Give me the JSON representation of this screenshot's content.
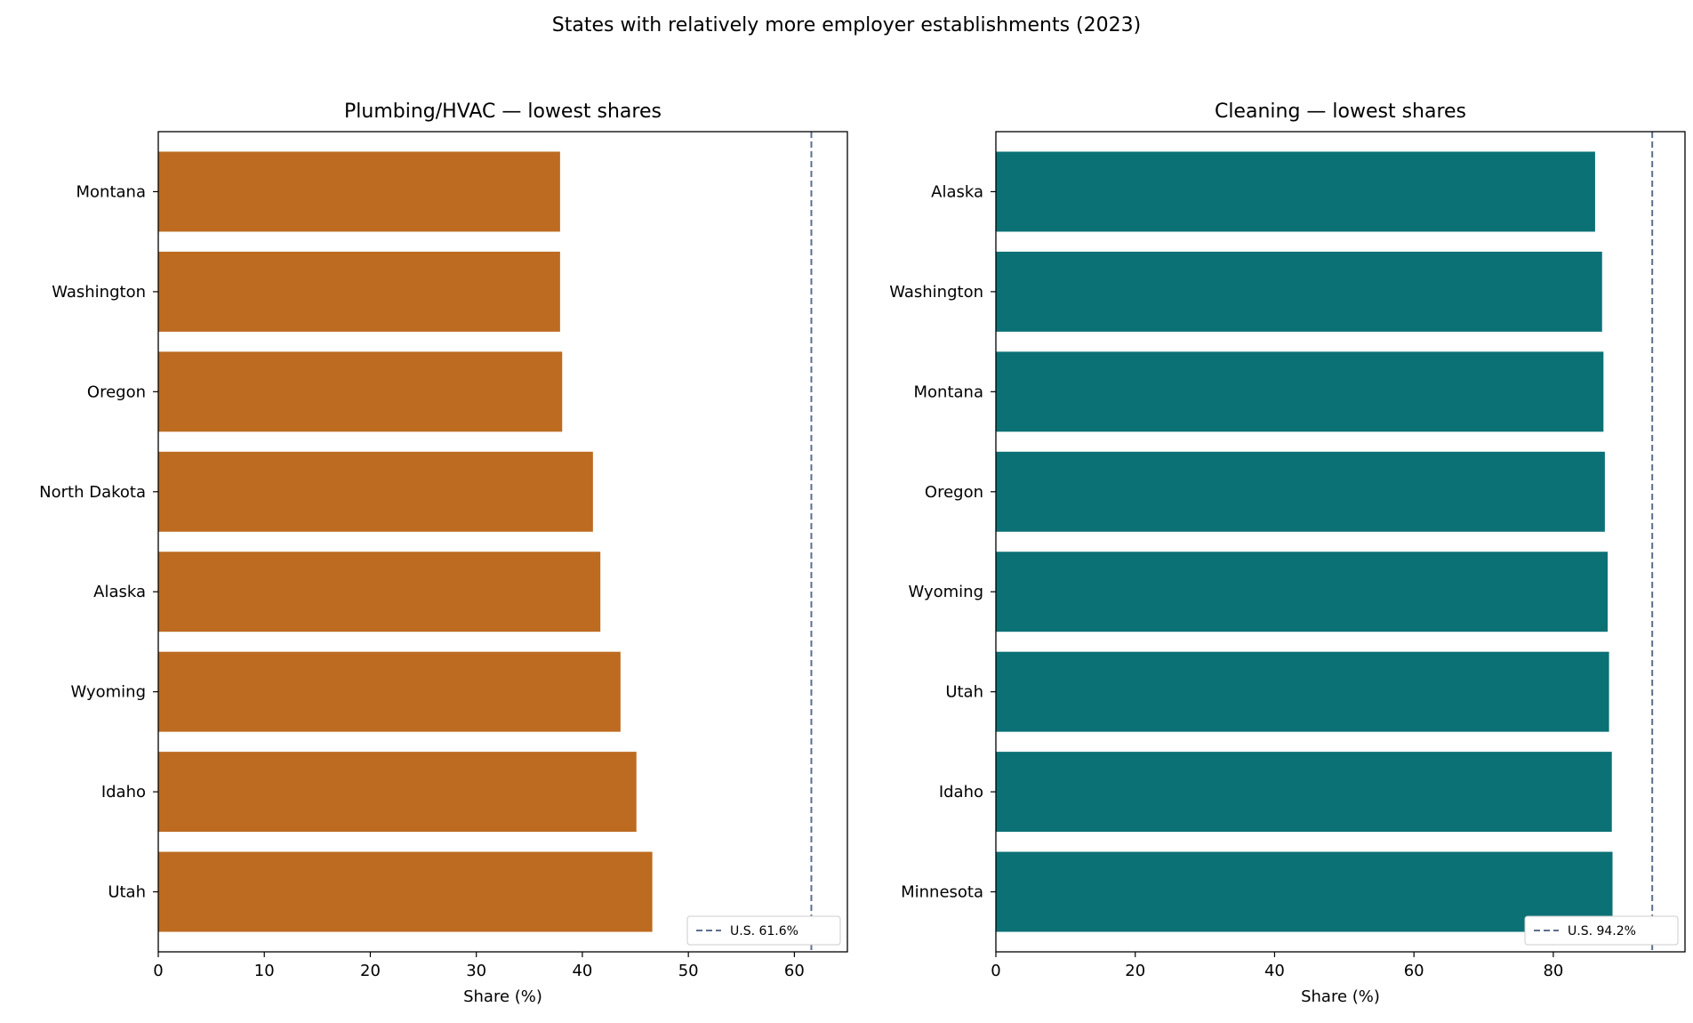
{
  "figure": {
    "title": "States with relatively more employer establishments (2023)"
  },
  "chart_data": [
    {
      "type": "bar",
      "orientation": "horizontal",
      "title": "Plumbing/HVAC — lowest shares",
      "xlabel": "Share (%)",
      "ylabel": "",
      "xlim": [
        0,
        65
      ],
      "xticks": [
        0,
        10,
        20,
        30,
        40,
        50,
        60
      ],
      "categories": [
        "Montana",
        "Washington",
        "Oregon",
        "North Dakota",
        "Alaska",
        "Wyoming",
        "Idaho",
        "Utah"
      ],
      "values": [
        37.9,
        37.9,
        38.1,
        41.0,
        41.7,
        43.6,
        45.1,
        46.6
      ],
      "bar_color": "#bd6b21",
      "reference_line": {
        "value": 61.6,
        "label": "U.S. 61.6%",
        "color": "#5c6f8e",
        "style": "dashed"
      },
      "legend_position": "bottom-right",
      "grid": false
    },
    {
      "type": "bar",
      "orientation": "horizontal",
      "title": "Cleaning — lowest shares",
      "xlabel": "Share (%)",
      "ylabel": "",
      "xlim": [
        0,
        98.9
      ],
      "xticks": [
        0,
        20,
        40,
        60,
        80
      ],
      "categories": [
        "Alaska",
        "Washington",
        "Montana",
        "Oregon",
        "Wyoming",
        "Utah",
        "Idaho",
        "Minnesota"
      ],
      "values": [
        86.0,
        87.0,
        87.2,
        87.4,
        87.8,
        88.0,
        88.4,
        88.5
      ],
      "bar_color": "#0b7175",
      "reference_line": {
        "value": 94.2,
        "label": "U.S. 94.2%",
        "color": "#5c6f8e",
        "style": "dashed"
      },
      "legend_position": "bottom-right",
      "grid": false
    }
  ]
}
